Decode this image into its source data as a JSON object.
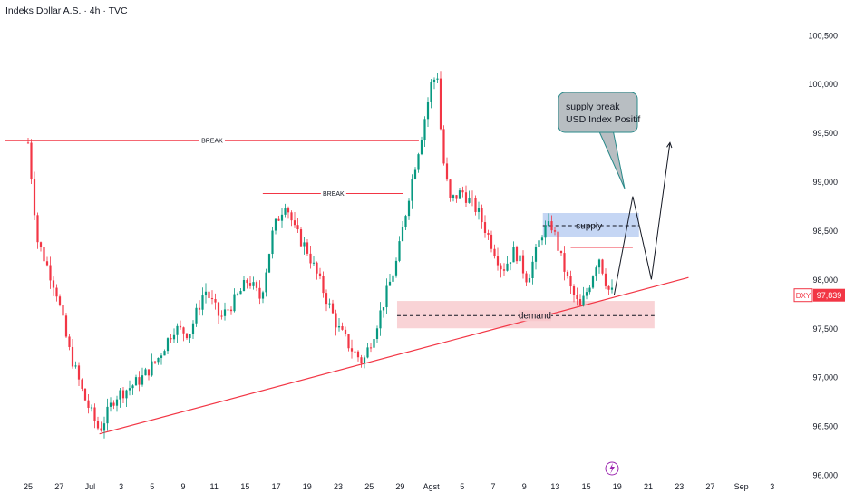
{
  "header": {
    "title": "Indeks Dollar A.S. · 4h · TVC"
  },
  "price_badge": {
    "symbol": "DXY",
    "value": "97,839"
  },
  "annotations": {
    "break_1": "BREAK",
    "break_2": "BREAK",
    "supply": "supply",
    "demand": "demand",
    "callout_line1": "supply break",
    "callout_line2": "USD Index Positif"
  },
  "colors": {
    "up": "#089981",
    "down": "#f23645",
    "trendline": "#f23645",
    "supply_zone": "#b2c8f0",
    "demand_zone": "#f8c8cc",
    "callout_bg": "#b8bec2",
    "badge_bg": "#f23645"
  },
  "chart_data": {
    "type": "candlestick",
    "title": "Indeks Dollar A.S. · 4h · TVC",
    "symbol": "DXY",
    "last_price": 97.839,
    "ylim": [
      96.0,
      100.6
    ],
    "y_ticks": [
      "100,500",
      "100,000",
      "99,500",
      "99,000",
      "98,500",
      "98,000",
      "97,500",
      "97,000",
      "96,500",
      "96,000"
    ],
    "y_tick_values": [
      100.5,
      100.0,
      99.5,
      99.0,
      98.5,
      98.0,
      97.5,
      97.0,
      96.5,
      96.0
    ],
    "x_ticks": [
      "25",
      "27",
      "Jul",
      "3",
      "5",
      "9",
      "11",
      "15",
      "17",
      "19",
      "23",
      "25",
      "29",
      "Agst",
      "5",
      "7",
      "9",
      "13",
      "15",
      "19",
      "21",
      "23",
      "27",
      "Sep",
      "3"
    ],
    "x_tick_index": [
      0,
      1,
      2,
      3,
      4,
      5,
      6,
      7,
      8,
      9,
      10,
      11,
      12,
      13,
      14,
      15,
      16,
      17,
      18,
      19,
      20,
      21,
      22,
      23,
      24
    ],
    "price_path": [
      [
        0,
        99.4
      ],
      [
        0.3,
        98.4
      ],
      [
        0.9,
        97.9
      ],
      [
        1.3,
        97.3
      ],
      [
        1.8,
        96.8
      ],
      [
        2.3,
        96.45
      ],
      [
        2.8,
        96.8
      ],
      [
        3.3,
        96.9
      ],
      [
        3.7,
        97.0
      ],
      [
        4.2,
        97.2
      ],
      [
        4.7,
        97.5
      ],
      [
        5.2,
        97.45
      ],
      [
        5.7,
        97.9
      ],
      [
        6.2,
        97.6
      ],
      [
        6.7,
        97.8
      ],
      [
        7.1,
        98.0
      ],
      [
        7.5,
        97.8
      ],
      [
        7.9,
        98.5
      ],
      [
        8.3,
        98.8
      ],
      [
        8.6,
        98.5
      ],
      [
        9.0,
        98.3
      ],
      [
        9.5,
        97.9
      ],
      [
        10.0,
        97.5
      ],
      [
        10.4,
        97.3
      ],
      [
        10.8,
        97.15
      ],
      [
        11.2,
        97.5
      ],
      [
        11.5,
        97.8
      ],
      [
        11.9,
        98.2
      ],
      [
        12.3,
        98.9
      ],
      [
        12.7,
        99.5
      ],
      [
        13.0,
        100.0
      ],
      [
        13.2,
        100.1
      ],
      [
        13.35,
        99.3
      ],
      [
        13.6,
        98.8
      ],
      [
        14.0,
        98.9
      ],
      [
        14.5,
        98.7
      ],
      [
        14.9,
        98.4
      ],
      [
        15.3,
        98.1
      ],
      [
        15.7,
        98.3
      ],
      [
        16.1,
        98.0
      ],
      [
        16.6,
        98.5
      ],
      [
        16.9,
        98.55
      ],
      [
        17.2,
        98.2
      ],
      [
        17.5,
        97.9
      ],
      [
        17.8,
        97.7
      ],
      [
        18.1,
        97.95
      ],
      [
        18.4,
        98.25
      ],
      [
        18.7,
        97.9
      ],
      [
        18.9,
        97.85
      ]
    ],
    "projection": [
      [
        18.9,
        97.84
      ],
      [
        19.5,
        98.85
      ],
      [
        20.1,
        98.0
      ],
      [
        20.7,
        99.4
      ]
    ],
    "trendline": [
      [
        2.3,
        96.42
      ],
      [
        21.3,
        98.02
      ]
    ],
    "supply_zone": {
      "x": [
        16.6,
        19.7
      ],
      "y": [
        98.43,
        98.68
      ],
      "mid": 98.55
    },
    "demand_zone": {
      "x": [
        11.9,
        20.2
      ],
      "y": [
        97.5,
        97.78
      ],
      "mid": 97.63
    },
    "break_levels": [
      {
        "label": "BREAK",
        "y": 99.42,
        "x": [
          0,
          12.6
        ]
      },
      {
        "label": "BREAK",
        "y": 98.88,
        "x": [
          8.3,
          12.1
        ]
      }
    ],
    "resistance_short": {
      "y": 98.33,
      "x": [
        17.5,
        19.5
      ]
    },
    "current_price_line": 97.839,
    "grid": false,
    "legend": "none"
  }
}
